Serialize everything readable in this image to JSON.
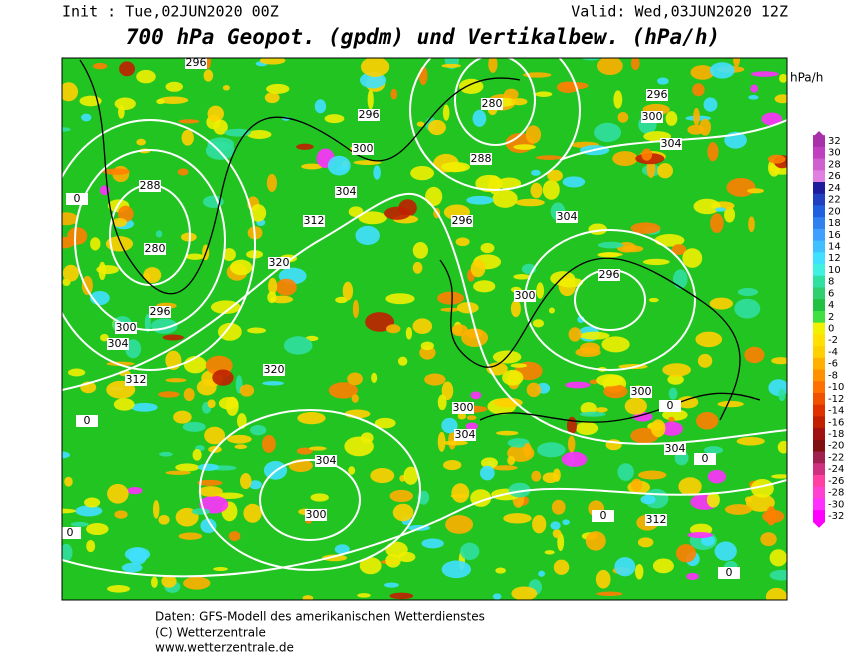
{
  "header": {
    "init": "Init : Tue,02JUN2020 00Z",
    "valid": "Valid: Wed,03JUN2020 12Z",
    "title": "700 hPa Geopot. (gpdm) und Vertikalbew. (hPa/h)"
  },
  "map": {
    "contour_labels": [
      "296",
      "280",
      "296",
      "300",
      "296",
      "300",
      "304",
      "288",
      "288",
      "304",
      "312",
      "296",
      "304",
      "280",
      "320",
      "296",
      "300",
      "296",
      "300",
      "304",
      "312",
      "320",
      "300",
      "300",
      "304",
      "304",
      "304",
      "300",
      "312",
      "0",
      "0",
      "0",
      "0",
      "0",
      "0",
      "0"
    ]
  },
  "colorbar": {
    "unit": "hPa/h",
    "items": [
      {
        "label": "32",
        "color": "#a830a8"
      },
      {
        "label": "30",
        "color": "#c040c0"
      },
      {
        "label": "28",
        "color": "#d060d0"
      },
      {
        "label": "26",
        "color": "#e080e0"
      },
      {
        "label": "24",
        "color": "#1c1c9c"
      },
      {
        "label": "22",
        "color": "#2040c0"
      },
      {
        "label": "20",
        "color": "#2060e0"
      },
      {
        "label": "18",
        "color": "#3080f0"
      },
      {
        "label": "16",
        "color": "#40a0ff"
      },
      {
        "label": "14",
        "color": "#40c0ff"
      },
      {
        "label": "12",
        "color": "#40e0ff"
      },
      {
        "label": "10",
        "color": "#40f0e0"
      },
      {
        "label": "8",
        "color": "#30e0a0"
      },
      {
        "label": "6",
        "color": "#30d070"
      },
      {
        "label": "4",
        "color": "#20c040"
      },
      {
        "label": "2",
        "color": "#40e040"
      },
      {
        "label": "0",
        "color": "#f0f000"
      },
      {
        "label": "-2",
        "color": "#ffe000"
      },
      {
        "label": "-4",
        "color": "#ffd000"
      },
      {
        "label": "-6",
        "color": "#ffb000"
      },
      {
        "label": "-8",
        "color": "#ff9000"
      },
      {
        "label": "-10",
        "color": "#ff7000"
      },
      {
        "label": "-12",
        "color": "#f05000"
      },
      {
        "label": "-14",
        "color": "#e03000"
      },
      {
        "label": "-16",
        "color": "#c02000"
      },
      {
        "label": "-18",
        "color": "#a01010"
      },
      {
        "label": "-20",
        "color": "#801010"
      },
      {
        "label": "-22",
        "color": "#a02050"
      },
      {
        "label": "-24",
        "color": "#d03080"
      },
      {
        "label": "-26",
        "color": "#ff40a0"
      },
      {
        "label": "-28",
        "color": "#ff40d0"
      },
      {
        "label": "-30",
        "color": "#ff30ff"
      },
      {
        "label": "-32",
        "color": "#ff00ff"
      }
    ]
  },
  "footer": {
    "line1": "Daten: GFS-Modell des amerikanischen Wetterdienstes",
    "line2": "(C) Wetterzentrale",
    "line3": "www.wetterzentrale.de"
  }
}
